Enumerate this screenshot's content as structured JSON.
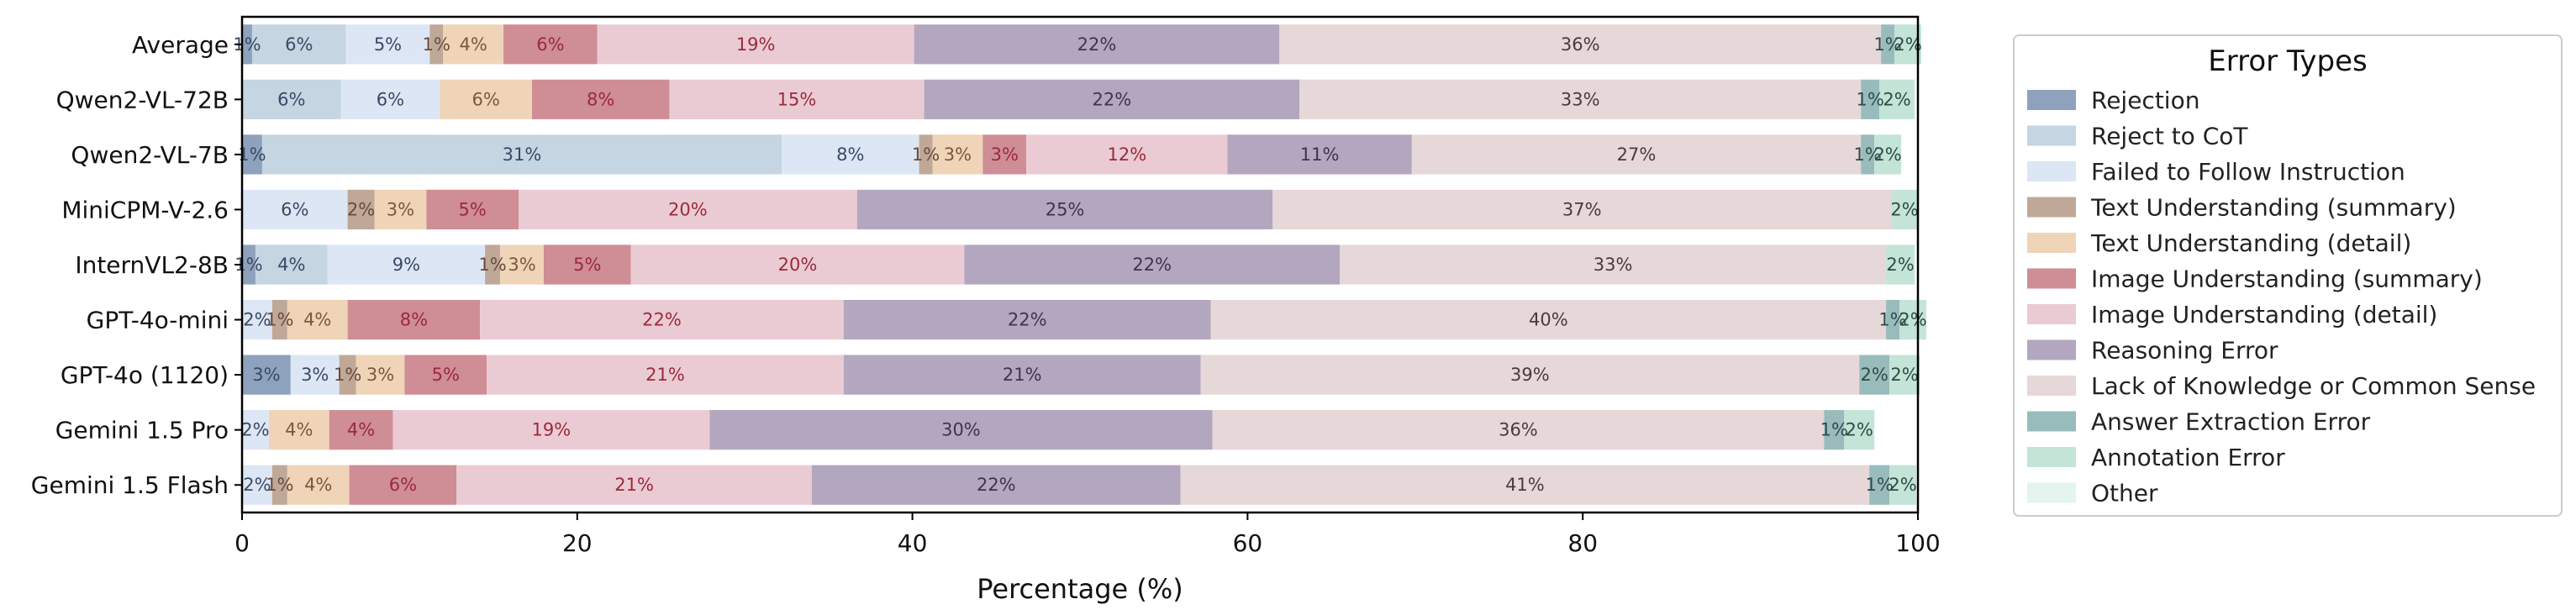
{
  "chart_data": {
    "type": "bar",
    "orientation": "horizontal",
    "stacked": true,
    "xlabel": "Percentage (%)",
    "ylabel": "",
    "xlim": [
      0,
      100
    ],
    "xticks": [
      0,
      20,
      40,
      60,
      80,
      100
    ],
    "grid": false,
    "legend": {
      "title": "Error Types",
      "placement": "right"
    },
    "categories": [
      "Average",
      "Qwen2-VL-72B",
      "Qwen2-VL-7B",
      "MiniCPM-V-2.6",
      "InternVL2-8B",
      "GPT-4o-mini",
      "GPT-4o (1120)",
      "Gemini 1.5 Pro",
      "Gemini 1.5 Flash"
    ],
    "series": [
      {
        "name": "Rejection",
        "color": "#8fa2bd",
        "text_color": "#3a4a66",
        "values": [
          0.6,
          0,
          1.2,
          0,
          0.8,
          0,
          2.9,
          0,
          0
        ],
        "labels": [
          "1%",
          "",
          "1%",
          "",
          "1%",
          "",
          "3%",
          "",
          ""
        ]
      },
      {
        "name": "Reject to CoT",
        "color": "#c5d5e2",
        "text_color": "#3a4a66",
        "values": [
          5.6,
          5.9,
          31.0,
          0,
          4.3,
          0,
          0,
          0,
          0
        ],
        "labels": [
          "6%",
          "6%",
          "31%",
          "",
          "4%",
          "",
          "",
          "",
          ""
        ]
      },
      {
        "name": "Failed to Follow Instruction",
        "color": "#dde6f5",
        "text_color": "#3a4a66",
        "values": [
          5.0,
          5.9,
          8.2,
          6.3,
          9.4,
          1.8,
          2.9,
          1.6,
          1.8
        ],
        "labels": [
          "5%",
          "6%",
          "8%",
          "6%",
          "9%",
          "2%",
          "3%",
          "2%",
          "2%"
        ]
      },
      {
        "name": "Text Understanding (summary)",
        "color": "#bfa898",
        "text_color": "#6b4a3a",
        "values": [
          0.8,
          0,
          0.8,
          1.6,
          0.9,
          0.9,
          1.0,
          0,
          0.9
        ],
        "labels": [
          "1%",
          "",
          "1%",
          "2%",
          "1%",
          "1%",
          "1%",
          "",
          "1%"
        ]
      },
      {
        "name": "Text Understanding (detail)",
        "color": "#efd4b8",
        "text_color": "#7a5a3a",
        "values": [
          3.6,
          5.5,
          3.0,
          3.1,
          2.6,
          3.6,
          2.9,
          3.6,
          3.7
        ],
        "labels": [
          "4%",
          "6%",
          "3%",
          "3%",
          "3%",
          "4%",
          "3%",
          "4%",
          "4%"
        ]
      },
      {
        "name": "Image Understanding (summary)",
        "color": "#cf8d96",
        "text_color": "#9a2a3a",
        "values": [
          5.6,
          8.2,
          2.6,
          5.5,
          5.2,
          7.9,
          4.9,
          3.8,
          6.4
        ],
        "labels": [
          "6%",
          "8%",
          "3%",
          "5%",
          "5%",
          "8%",
          "5%",
          "4%",
          "6%"
        ]
      },
      {
        "name": "Image Understanding (detail)",
        "color": "#ebcbd3",
        "text_color": "#9a2a3a",
        "values": [
          18.9,
          15.2,
          12.0,
          20.2,
          19.9,
          21.7,
          21.3,
          18.9,
          21.2
        ],
        "labels": [
          "19%",
          "15%",
          "12%",
          "20%",
          "20%",
          "22%",
          "21%",
          "19%",
          "21%"
        ]
      },
      {
        "name": "Reasoning Error",
        "color": "#b3a7bf",
        "text_color": "#3f3350",
        "values": [
          21.8,
          22.4,
          11.0,
          24.8,
          22.4,
          21.9,
          21.3,
          30.0,
          22.0
        ],
        "labels": [
          "22%",
          "22%",
          "11%",
          "25%",
          "22%",
          "22%",
          "21%",
          "30%",
          "22%"
        ]
      },
      {
        "name": "Lack of Knowledge or Common Sense",
        "color": "#e6d7d9",
        "text_color": "#4a3a40",
        "values": [
          35.9,
          33.5,
          26.8,
          36.9,
          32.6,
          40.3,
          39.3,
          36.5,
          41.1
        ],
        "labels": [
          "36%",
          "33%",
          "27%",
          "37%",
          "33%",
          "40%",
          "39%",
          "36%",
          "41%"
        ]
      },
      {
        "name": "Answer Extraction Error",
        "color": "#98bcbb",
        "text_color": "#2f4a48",
        "values": [
          0.8,
          1.1,
          0.8,
          0,
          0,
          0.8,
          1.8,
          1.2,
          1.2
        ],
        "labels": [
          "1%",
          "1%",
          "1%",
          "",
          "",
          "1%",
          "2%",
          "1%",
          "1%"
        ]
      },
      {
        "name": "Annotation Error",
        "color": "#c3e4d6",
        "text_color": "#2f4a48",
        "values": [
          1.6,
          2.1,
          1.6,
          1.6,
          1.7,
          1.6,
          1.8,
          1.8,
          1.6
        ],
        "labels": [
          "2%",
          "2%",
          "2%",
          "2%",
          "2%",
          "2%",
          "2%",
          "2%",
          "2%"
        ]
      },
      {
        "name": "Other",
        "color": "#e4f4ef",
        "text_color": "#2f4a48",
        "values": [
          0,
          0,
          0,
          0,
          0,
          0,
          0,
          0,
          0
        ],
        "labels": [
          "",
          "",
          "",
          "",
          "",
          "",
          "",
          "",
          ""
        ]
      }
    ]
  }
}
